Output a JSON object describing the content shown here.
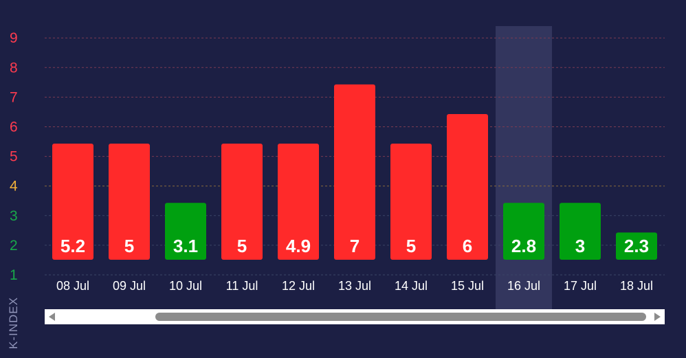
{
  "chart_data": {
    "type": "bar",
    "ylabel": "K-INDEX",
    "ylim": [
      1,
      9
    ],
    "y_ticks": [
      "1",
      "2",
      "3",
      "4",
      "5",
      "6",
      "7",
      "8",
      "9"
    ],
    "categories": [
      "08 Jul",
      "09 Jul",
      "10 Jul",
      "11 Jul",
      "12 Jul",
      "13 Jul",
      "14 Jul",
      "15 Jul",
      "16 Jul",
      "17 Jul",
      "18 Jul"
    ],
    "bar_levels": [
      5,
      5,
      3,
      5,
      5,
      7,
      5,
      6,
      3,
      3,
      2
    ],
    "value_labels": [
      "5.2",
      "5",
      "3.1",
      "5",
      "4.9",
      "7",
      "5",
      "6",
      "2.8",
      "3",
      "2.3"
    ],
    "highlighted_category": "16 Jul",
    "grid": true,
    "legend": "none",
    "colors": {
      "storm": "#ff2a2a",
      "quiet": "#00a010",
      "tick_high": "#ff3b4f",
      "tick_mid": "#f0b03a",
      "tick_low": "#18a84a",
      "highlight": "#33365e"
    }
  },
  "scrollbar": {
    "left_arrow": "chevron-left-icon",
    "right_arrow": "chevron-right-icon"
  }
}
